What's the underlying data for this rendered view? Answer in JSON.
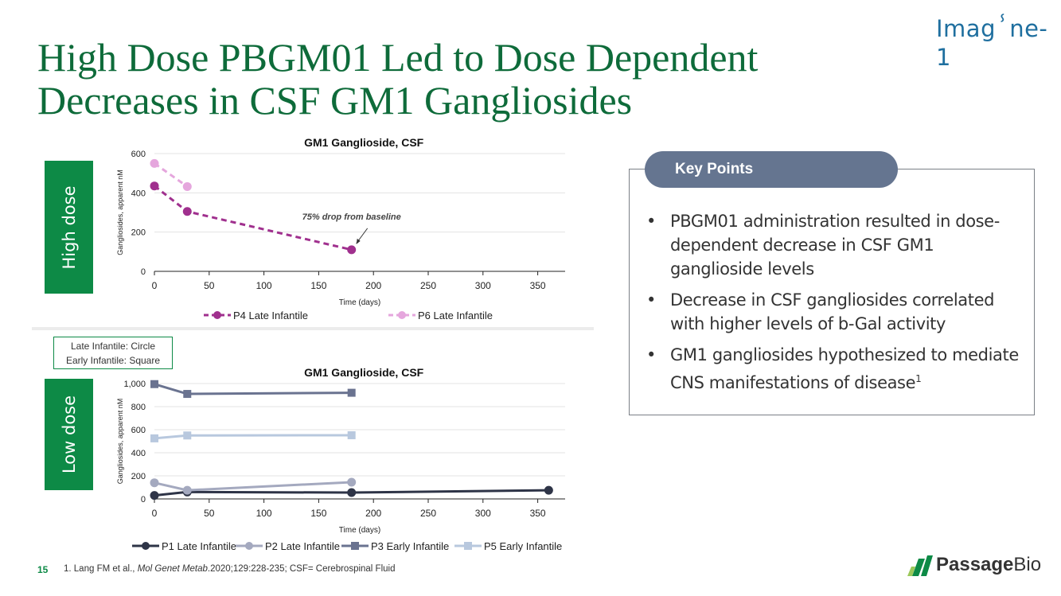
{
  "header": {
    "logo_text": "Imagⸯne-1",
    "title_line1": "High Dose PBGM01 Led to Dose Dependent",
    "title_line2": "Decreases in CSF GM1 Gangliosides"
  },
  "labels": {
    "high_dose": "High dose",
    "low_dose": "Low dose",
    "shape_legend_1": "Late Infantile: Circle",
    "shape_legend_2": "Early Infantile: Square"
  },
  "key_points": {
    "header": "Key Points",
    "bullet": "•",
    "items": [
      "PBGM01 administration resulted in dose-dependent decrease in CSF GM1 ganglioside levels",
      "Decrease in CSF gangliosides correlated with higher levels of b-Gal activity",
      "GM1 gangliosides hypothesized to mediate CNS manifestations of disease"
    ],
    "item3_superscript": "1"
  },
  "footer": {
    "page_number": "15",
    "footnote_prefix": "1. Lang FM et al., ",
    "footnote_journal": "Mol Genet Metab",
    "footnote_suffix": ".2020;129:228-235; CSF= Cerebrospinal Fluid",
    "passage_bold": "Passage",
    "passage_regular": "Bio",
    "logo_colors": [
      "#0d8a46",
      "#9bc85a"
    ]
  },
  "chart_data": [
    {
      "type": "line",
      "title": "GM1 Ganglioside, CSF",
      "xlabel": "Time (days)",
      "ylabel": "Gangliosides, apparent nM",
      "xlim": [
        0,
        375
      ],
      "ylim": [
        0,
        600
      ],
      "xticks": [
        0,
        50,
        100,
        150,
        200,
        250,
        300,
        350
      ],
      "yticks": [
        0,
        200,
        400,
        600
      ],
      "ytick_labels": [
        "0",
        "200",
        "400",
        "600"
      ],
      "grid": true,
      "legend": "bottom",
      "annotation": "75% drop from baseline",
      "series": [
        {
          "name": "P4 Late Infantile",
          "color": "#a0308e",
          "dash": true,
          "marker": "circle",
          "x": [
            0,
            30,
            180
          ],
          "y": [
            435,
            305,
            110
          ]
        },
        {
          "name": "P6 Late Infantile",
          "color": "#e5a6dd",
          "dash": true,
          "marker": "circle",
          "x": [
            0,
            30
          ],
          "y": [
            550,
            432
          ]
        }
      ]
    },
    {
      "type": "line",
      "title": "GM1 Ganglioside, CSF",
      "xlabel": "Time (days)",
      "ylabel": "Gangliosides, apparent nM",
      "xlim": [
        0,
        375
      ],
      "ylim": [
        0,
        1000
      ],
      "xticks": [
        0,
        50,
        100,
        150,
        200,
        250,
        300,
        350
      ],
      "yticks": [
        0,
        200,
        400,
        600,
        800,
        1000
      ],
      "ytick_labels": [
        "0",
        "200",
        "400",
        "600",
        "800",
        "1,000"
      ],
      "grid": true,
      "legend": "bottom",
      "series": [
        {
          "name": "P1 Late Infantile",
          "color": "#2e3447",
          "dash": false,
          "marker": "circle",
          "x": [
            0,
            30,
            180,
            360
          ],
          "y": [
            30,
            60,
            55,
            75
          ]
        },
        {
          "name": "P2 Late Infantile",
          "color": "#a4a9bf",
          "dash": false,
          "marker": "circle",
          "x": [
            0,
            30,
            180
          ],
          "y": [
            140,
            75,
            145
          ]
        },
        {
          "name": "P3 Early Infantile",
          "color": "#6a7390",
          "dash": false,
          "marker": "square",
          "x": [
            0,
            30,
            180
          ],
          "y": [
            995,
            910,
            920
          ]
        },
        {
          "name": "P5 Early Infantile",
          "color": "#b8c8de",
          "dash": false,
          "marker": "square",
          "x": [
            0,
            30,
            180
          ],
          "y": [
            525,
            550,
            552
          ]
        }
      ]
    }
  ]
}
